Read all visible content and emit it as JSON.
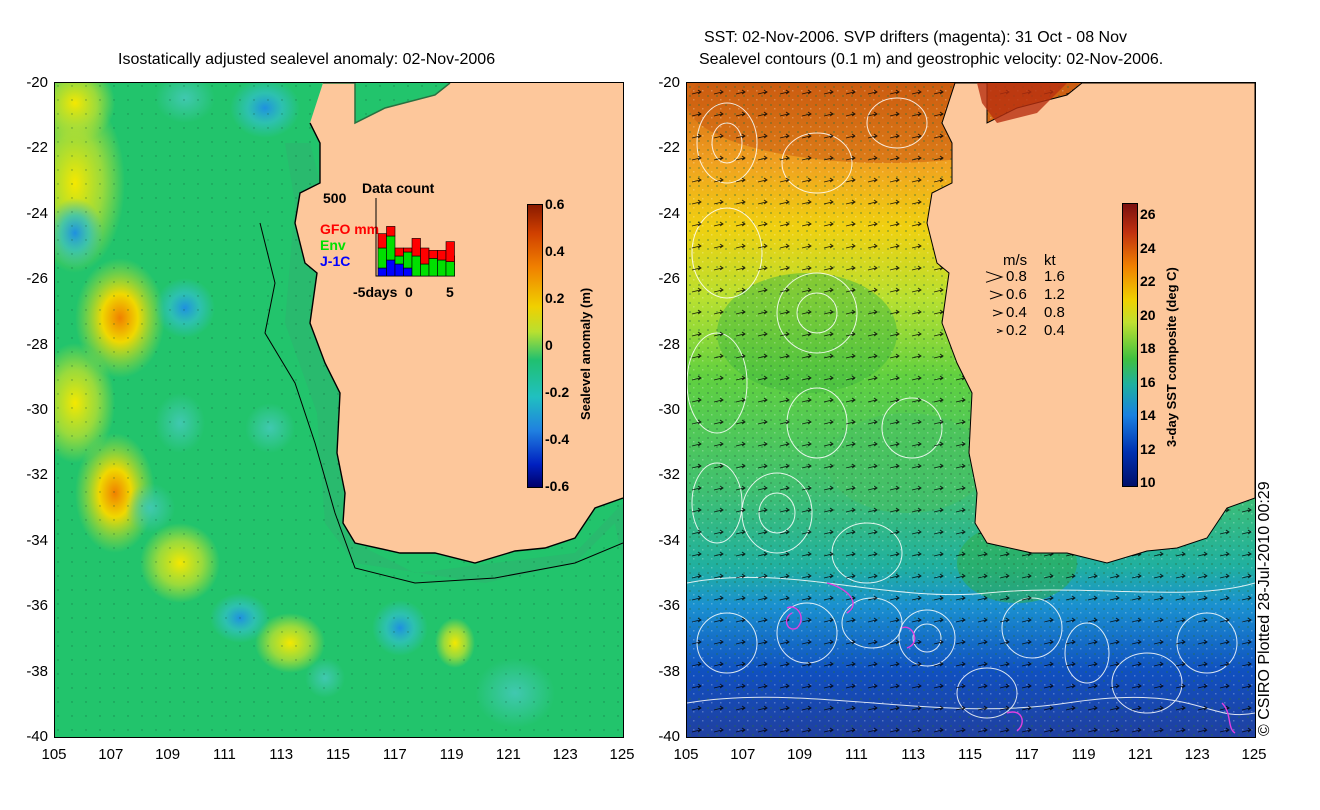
{
  "left_panel": {
    "title": "Isostatically adjusted sealevel anomaly: 02-Nov-2006",
    "y_ticks": [
      "-20",
      "-22",
      "-24",
      "-26",
      "-28",
      "-30",
      "-32",
      "-34",
      "-36",
      "-38",
      "-40"
    ],
    "x_ticks": [
      "105",
      "107",
      "109",
      "111",
      "113",
      "115",
      "117",
      "119",
      "121",
      "123",
      "125"
    ],
    "colorbar": {
      "label": "Sealevel anomaly (m)",
      "ticks": [
        "0.6",
        "0.4",
        "0.2",
        "0",
        "-0.2",
        "-0.4",
        "-0.6"
      ],
      "range": [
        -0.6,
        0.6
      ]
    },
    "inset": {
      "title": "Data count",
      "y_max_label": "500",
      "legend": [
        {
          "label": "GFO mm",
          "color": "#ff0000"
        },
        {
          "label": "Env",
          "color": "#00e000"
        },
        {
          "label": "J-1C",
          "color": "#0000ff"
        }
      ],
      "x_labels": [
        "-5days",
        "0",
        "5"
      ],
      "bars": [
        {
          "blue": 0.1,
          "green": 0.25,
          "red": 0.18
        },
        {
          "blue": 0.2,
          "green": 0.3,
          "red": 0.12
        },
        {
          "blue": 0.15,
          "green": 0.1,
          "red": 0.1
        },
        {
          "blue": 0.1,
          "green": 0.2,
          "red": 0.05
        },
        {
          "blue": 0.0,
          "green": 0.25,
          "red": 0.22
        },
        {
          "blue": 0.0,
          "green": 0.15,
          "red": 0.2
        },
        {
          "blue": 0.0,
          "green": 0.22,
          "red": 0.1
        },
        {
          "blue": 0.0,
          "green": 0.2,
          "red": 0.12
        },
        {
          "blue": 0.0,
          "green": 0.18,
          "red": 0.25
        },
        {
          "blue": 0.0,
          "green": 0.15,
          "red": 0.1
        }
      ]
    }
  },
  "right_panel": {
    "title_line1": "SST: 02-Nov-2006. SVP drifters (magenta): 31 Oct - 08 Nov",
    "title_line2": "Sealevel contours (0.1 m) and geostrophic velocity: 02-Nov-2006.",
    "y_ticks": [
      "-20",
      "-22",
      "-24",
      "-26",
      "-28",
      "-30",
      "-32",
      "-34",
      "-36",
      "-38",
      "-40"
    ],
    "x_ticks": [
      "105",
      "107",
      "109",
      "111",
      "113",
      "115",
      "117",
      "119",
      "121",
      "123",
      "125"
    ],
    "colorbar": {
      "label": "3-day SST composite (deg C)",
      "ticks": [
        "26",
        "24",
        "22",
        "20",
        "18",
        "16",
        "14",
        "12",
        "10"
      ],
      "range": [
        10,
        27
      ]
    },
    "velocity_legend": {
      "header_ms": "m/s",
      "header_kt": "kt",
      "rows": [
        {
          "ms": "0.8",
          "kt": "1.6"
        },
        {
          "ms": "0.6",
          "kt": "1.2"
        },
        {
          "ms": "0.4",
          "kt": "0.8"
        },
        {
          "ms": "0.2",
          "kt": "0.4"
        }
      ]
    }
  },
  "credit": "© CSIRO Plotted 28-Jul-2010 00:29",
  "colors": {
    "land": "#fdc79b",
    "sla_base": "#1fc46a",
    "sla_high": "#f0e400",
    "sla_low": "#20a0e0",
    "sst_warm": "#e07a10",
    "sst_cool": "#1a3cb0",
    "drifter": "#e040e0"
  }
}
